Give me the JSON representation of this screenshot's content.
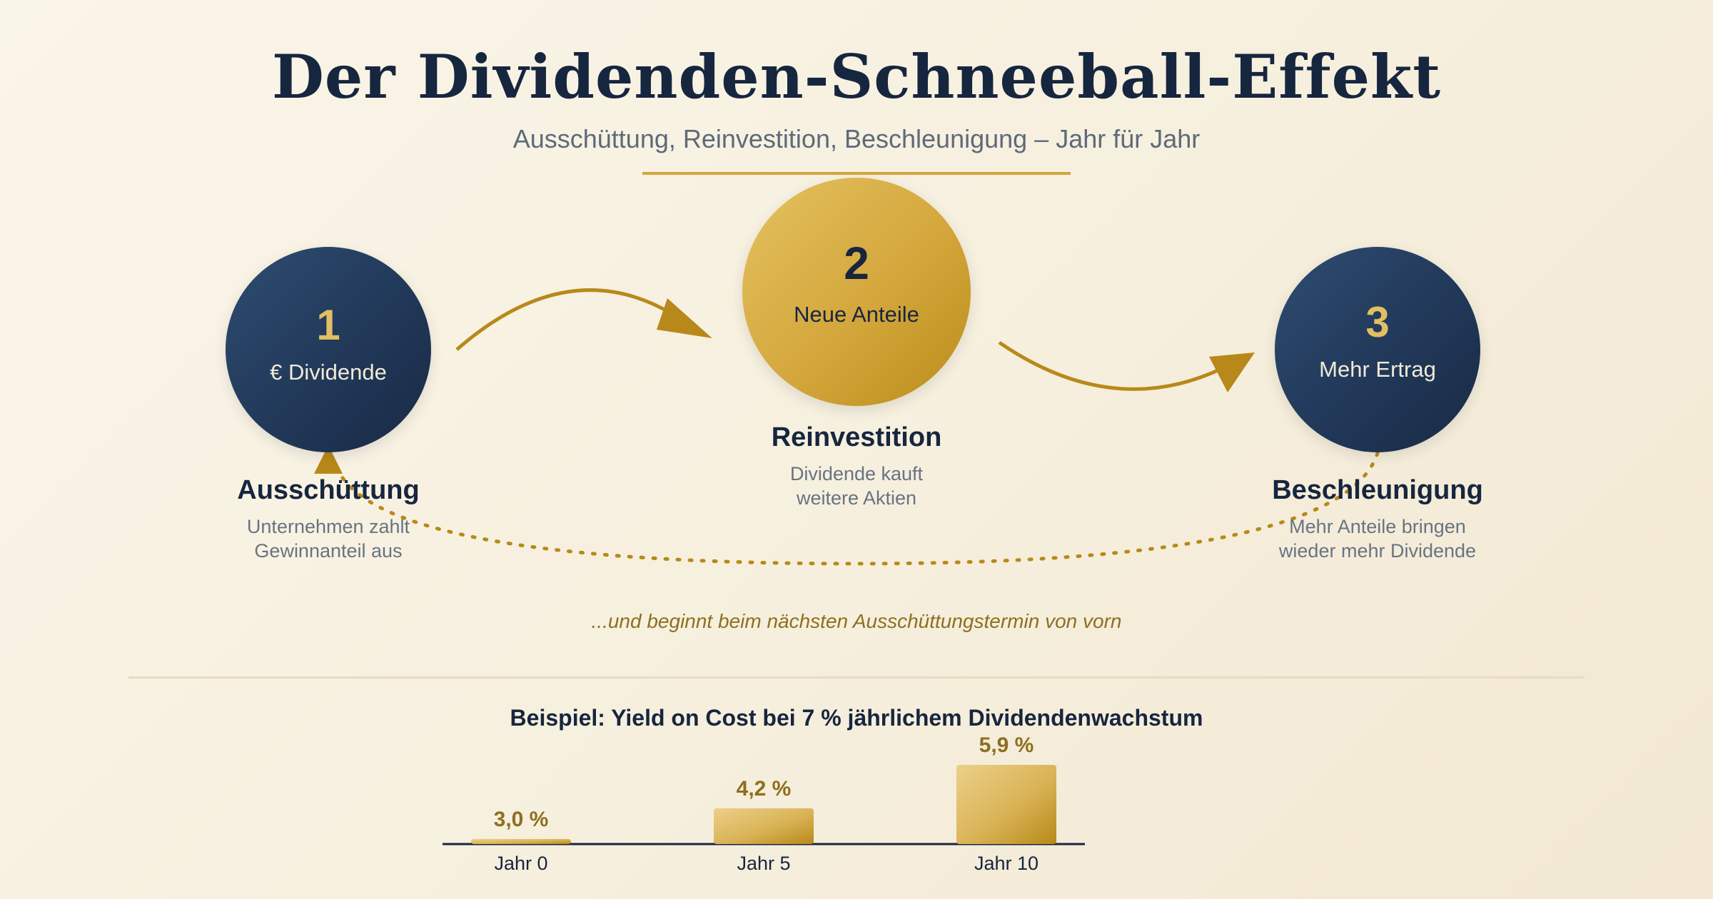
{
  "header": {
    "title": "Der Dividenden-Schneeball-Effekt",
    "subtitle": "Ausschüttung, Reinvestition, Beschleunigung – Jahr für Jahr"
  },
  "steps": [
    {
      "number": "1",
      "circle_label": "€ Dividende",
      "title": "Ausschüttung",
      "desc_lines": [
        "Unternehmen zahlt",
        "Gewinnanteil aus"
      ]
    },
    {
      "number": "2",
      "circle_label": "Neue Anteile",
      "title": "Reinvestition",
      "desc_lines": [
        "Dividende kauft",
        "weitere Aktien"
      ]
    },
    {
      "number": "3",
      "circle_label": "Mehr Ertrag",
      "title": "Beschleunigung",
      "desc_lines": [
        "Mehr Anteile bringen",
        "wieder mehr Dividende"
      ]
    }
  ],
  "loop_note": "...und beginnt beim nächsten Ausschüttungstermin von vorn",
  "colors": {
    "navy": "#1f3352",
    "gold": "#d4a63b",
    "arrow": "#b8891a"
  },
  "chart_data": {
    "type": "bar",
    "title": "Beispiel: Yield on Cost bei 7 % jährlichem Dividendenwachstum",
    "categories": [
      "Jahr 0",
      "Jahr 5",
      "Jahr 10"
    ],
    "values": [
      3.0,
      4.2,
      5.9
    ],
    "value_labels": [
      "3,0 %",
      "4,2 %",
      "5,9 %"
    ],
    "xlabel": "",
    "ylabel": "",
    "ylim": [
      0,
      5.9
    ],
    "baseline_at": 2.8,
    "grid": false
  }
}
